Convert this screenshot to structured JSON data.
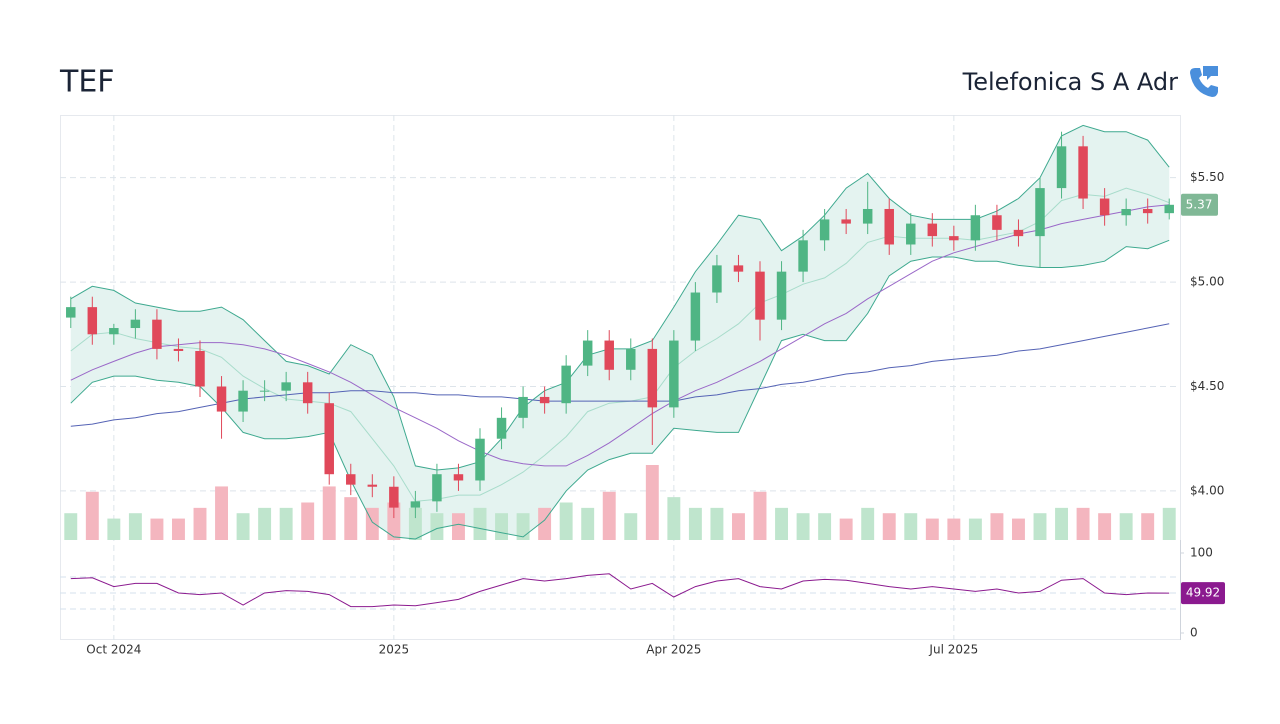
{
  "header": {
    "symbol": "TEF",
    "name": "Telefonica S A Adr"
  },
  "chart_data": [
    {
      "type": "candlestick",
      "open": [
        4.83,
        4.88,
        4.75,
        4.78,
        4.82,
        4.68,
        4.67,
        4.5,
        4.38,
        4.48,
        4.48,
        4.52,
        4.42,
        4.08,
        4.03,
        4.02,
        3.92,
        3.95,
        4.08,
        4.05,
        4.25,
        4.35,
        4.45,
        4.42,
        4.6,
        4.72,
        4.58,
        4.68,
        4.4,
        4.72,
        4.95,
        5.08,
        5.05,
        4.82,
        5.05,
        5.2,
        5.3,
        5.28,
        5.35,
        5.18,
        5.28,
        5.22,
        5.2,
        5.32,
        5.25,
        5.22,
        5.45,
        5.65,
        5.4,
        5.32,
        5.35,
        5.33
      ],
      "high": [
        4.93,
        4.93,
        4.8,
        4.87,
        4.87,
        4.73,
        4.72,
        4.55,
        4.53,
        4.53,
        4.57,
        4.57,
        4.47,
        4.13,
        4.08,
        4.07,
        4.0,
        4.13,
        4.13,
        4.3,
        4.4,
        4.5,
        4.5,
        4.65,
        4.77,
        4.77,
        4.73,
        4.73,
        4.77,
        5.0,
        5.13,
        5.13,
        5.1,
        5.1,
        5.25,
        5.35,
        5.35,
        5.48,
        5.4,
        5.33,
        5.33,
        5.27,
        5.37,
        5.37,
        5.3,
        5.5,
        5.72,
        5.7,
        5.45,
        5.4,
        5.4,
        5.4
      ],
      "low": [
        4.78,
        4.7,
        4.7,
        4.73,
        4.63,
        4.62,
        4.45,
        4.25,
        4.33,
        4.43,
        4.43,
        4.37,
        4.03,
        3.98,
        3.97,
        3.87,
        3.87,
        3.9,
        4.0,
        4.0,
        4.2,
        4.3,
        4.37,
        4.37,
        4.55,
        4.53,
        4.53,
        4.22,
        4.35,
        4.67,
        4.9,
        5.0,
        4.72,
        4.77,
        5.0,
        5.15,
        5.23,
        5.23,
        5.13,
        5.13,
        5.17,
        5.15,
        5.15,
        5.2,
        5.17,
        5.07,
        5.4,
        5.35,
        5.27,
        5.27,
        5.28,
        5.3
      ],
      "close": [
        4.88,
        4.75,
        4.78,
        4.82,
        4.68,
        4.67,
        4.5,
        4.38,
        4.48,
        4.48,
        4.52,
        4.42,
        4.08,
        4.03,
        4.02,
        3.92,
        3.95,
        4.08,
        4.05,
        4.25,
        4.35,
        4.45,
        4.42,
        4.6,
        4.72,
        4.58,
        4.68,
        4.4,
        4.72,
        4.95,
        5.08,
        5.05,
        4.82,
        5.05,
        5.2,
        5.3,
        5.28,
        5.35,
        5.18,
        5.28,
        5.22,
        5.2,
        5.32,
        5.25,
        5.22,
        5.45,
        5.65,
        5.4,
        5.32,
        5.35,
        5.33,
        5.37
      ],
      "volume": [
        0.5,
        0.9,
        0.4,
        0.5,
        0.4,
        0.4,
        0.6,
        1.0,
        0.5,
        0.6,
        0.6,
        0.7,
        1.0,
        0.8,
        0.6,
        0.7,
        0.6,
        0.5,
        0.5,
        0.6,
        0.5,
        0.5,
        0.6,
        0.7,
        0.6,
        0.9,
        0.5,
        1.4,
        0.8,
        0.6,
        0.6,
        0.5,
        0.9,
        0.6,
        0.5,
        0.5,
        0.4,
        0.6,
        0.5,
        0.5,
        0.4,
        0.4,
        0.4,
        0.5,
        0.4,
        0.5,
        0.6,
        0.6,
        0.5,
        0.5,
        0.5,
        0.6
      ],
      "up_color": "#4fb584",
      "down_color": "#e0485a",
      "volume_up_color": "#bfe5cd",
      "volume_down_color": "#f4b6bf",
      "band_fill": "#e4f3f0",
      "series": [
        {
          "color": "#3ea98f",
          "values": [
            4.92,
            4.98,
            4.96,
            4.9,
            4.88,
            4.86,
            4.86,
            4.88,
            4.82,
            4.72,
            4.62,
            4.6,
            4.56,
            4.7,
            4.65,
            4.45,
            4.12,
            4.1,
            4.11,
            4.14,
            4.25,
            4.4,
            4.48,
            4.52,
            4.65,
            4.68,
            4.68,
            4.72,
            4.88,
            5.05,
            5.18,
            5.32,
            5.3,
            5.15,
            5.22,
            5.32,
            5.45,
            5.52,
            5.4,
            5.32,
            5.3,
            5.3,
            5.3,
            5.34,
            5.4,
            5.5,
            5.7,
            5.75,
            5.72,
            5.72,
            5.68,
            5.55
          ]
        },
        {
          "color": "#a8dccb",
          "values": [
            4.67,
            4.75,
            4.76,
            4.73,
            4.71,
            4.69,
            4.68,
            4.64,
            4.55,
            4.49,
            4.44,
            4.43,
            4.42,
            4.38,
            4.25,
            4.12,
            3.95,
            3.96,
            3.98,
            3.98,
            4.03,
            4.09,
            4.17,
            4.26,
            4.38,
            4.42,
            4.43,
            4.45,
            4.59,
            4.67,
            4.73,
            4.8,
            4.9,
            4.94,
            4.99,
            5.02,
            5.09,
            5.19,
            5.22,
            5.21,
            5.21,
            5.21,
            5.2,
            5.22,
            5.24,
            5.29,
            5.39,
            5.42,
            5.41,
            5.45,
            5.42,
            5.38
          ]
        },
        {
          "color": "#3ea98f",
          "values": [
            4.42,
            4.52,
            4.55,
            4.55,
            4.53,
            4.52,
            4.5,
            4.4,
            4.28,
            4.25,
            4.25,
            4.26,
            4.28,
            4.05,
            3.85,
            3.78,
            3.77,
            3.82,
            3.84,
            3.82,
            3.8,
            3.78,
            3.86,
            4.0,
            4.1,
            4.15,
            4.18,
            4.18,
            4.3,
            4.29,
            4.28,
            4.28,
            4.5,
            4.72,
            4.75,
            4.72,
            4.72,
            4.85,
            5.03,
            5.1,
            5.12,
            5.12,
            5.1,
            5.1,
            5.08,
            5.07,
            5.07,
            5.08,
            5.1,
            5.17,
            5.16,
            5.2
          ]
        },
        {
          "color": "#9a68c8",
          "values": [
            4.53,
            4.58,
            4.62,
            4.66,
            4.69,
            4.7,
            4.71,
            4.71,
            4.7,
            4.68,
            4.65,
            4.61,
            4.57,
            4.52,
            4.46,
            4.4,
            4.35,
            4.3,
            4.24,
            4.19,
            4.15,
            4.13,
            4.12,
            4.12,
            4.17,
            4.23,
            4.3,
            4.37,
            4.43,
            4.48,
            4.52,
            4.57,
            4.62,
            4.68,
            4.74,
            4.8,
            4.85,
            4.92,
            4.98,
            5.04,
            5.1,
            5.14,
            5.17,
            5.2,
            5.23,
            5.25,
            5.28,
            5.3,
            5.32,
            5.34,
            5.36,
            5.37
          ]
        },
        {
          "color": "#5563b5",
          "values": [
            4.31,
            4.32,
            4.34,
            4.35,
            4.37,
            4.38,
            4.4,
            4.42,
            4.44,
            4.45,
            4.46,
            4.47,
            4.47,
            4.48,
            4.48,
            4.47,
            4.47,
            4.46,
            4.46,
            4.45,
            4.45,
            4.44,
            4.43,
            4.43,
            4.43,
            4.43,
            4.43,
            4.43,
            4.43,
            4.45,
            4.46,
            4.48,
            4.49,
            4.51,
            4.52,
            4.54,
            4.56,
            4.57,
            4.59,
            4.6,
            4.62,
            4.63,
            4.64,
            4.65,
            4.67,
            4.68,
            4.7,
            4.72,
            4.74,
            4.76,
            4.78,
            4.8
          ]
        }
      ],
      "last_color": "#80b896",
      "ylim": [
        3.765,
        5.8
      ],
      "yticks": [
        {
          "value": 4,
          "label": "$4.00"
        },
        {
          "value": 4.5,
          "label": "$4.50"
        },
        {
          "value": 5,
          "label": "$5.00"
        },
        {
          "value": 5.5,
          "label": "$5.50"
        }
      ],
      "grid": true
    },
    {
      "type": "line",
      "categories": [
        null,
        null,
        "Oct 2024",
        null,
        null,
        null,
        null,
        null,
        null,
        null,
        null,
        null,
        null,
        null,
        null,
        "2025",
        null,
        null,
        null,
        null,
        null,
        null,
        null,
        null,
        null,
        null,
        null,
        null,
        "Apr 2025",
        null,
        null,
        null,
        null,
        null,
        null,
        null,
        null,
        null,
        null,
        null,
        null,
        "Jul 2025",
        null,
        null,
        null,
        null,
        null,
        null,
        null,
        null,
        null,
        null
      ],
      "values": [
        68,
        69,
        58,
        62,
        62,
        50,
        48,
        50,
        35,
        50,
        53,
        52,
        48,
        33,
        33,
        35,
        34,
        38,
        42,
        52,
        60,
        68,
        65,
        68,
        72,
        74,
        55,
        62,
        45,
        58,
        65,
        68,
        58,
        55,
        65,
        67,
        66,
        62,
        58,
        55,
        58,
        55,
        52,
        55,
        50,
        52,
        66,
        68,
        50,
        48,
        50,
        49.92
      ],
      "color": "#8b1a8f",
      "ylim": [
        -8.75,
        116.25
      ],
      "yticks": [
        0,
        100
      ],
      "guides": [
        70,
        50,
        30
      ],
      "grid": true
    }
  ]
}
